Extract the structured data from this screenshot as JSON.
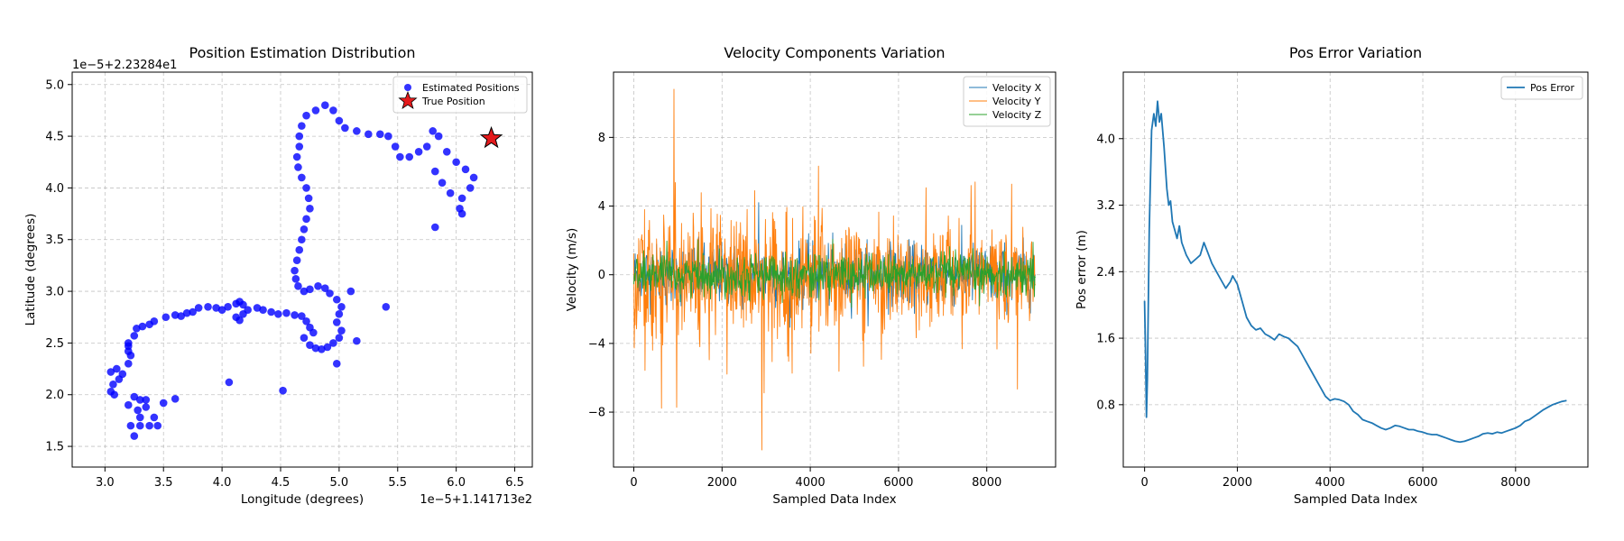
{
  "chart_data": [
    {
      "type": "scatter",
      "title": "Position Estimation Distribution",
      "xlabel": "Longitude (degrees)",
      "ylabel": "Latitude (degrees)",
      "x_offset_label": "1e−5+1.141713e2",
      "y_offset_label": "1e−5+2.23284e1",
      "xlim": [
        2.72,
        6.65
      ],
      "ylim": [
        1.3,
        5.12
      ],
      "xticks": [
        3.0,
        3.5,
        4.0,
        4.5,
        5.0,
        5.5,
        6.0,
        6.5
      ],
      "xtick_labels": [
        "3.0",
        "3.5",
        "4.0",
        "4.5",
        "5.0",
        "5.5",
        "6.0",
        "6.5"
      ],
      "yticks": [
        1.5,
        2.0,
        2.5,
        3.0,
        3.5,
        4.0,
        4.5,
        5.0
      ],
      "ytick_labels": [
        "1.5",
        "2.0",
        "2.5",
        "3.0",
        "3.5",
        "4.0",
        "4.5",
        "5.0"
      ],
      "grid": true,
      "legend_position": "top-right",
      "colors": {
        "estimated": "#0000ff",
        "true": "#e41a1c"
      },
      "series": [
        {
          "name": "Estimated Positions",
          "marker": "circle",
          "points": [
            [
              3.05,
              2.03
            ],
            [
              3.07,
              2.1
            ],
            [
              3.05,
              2.22
            ],
            [
              3.1,
              2.25
            ],
            [
              3.12,
              2.15
            ],
            [
              3.15,
              2.2
            ],
            [
              3.08,
              2.0
            ],
            [
              3.2,
              2.3
            ],
            [
              3.2,
              2.42
            ],
            [
              3.2,
              2.5
            ],
            [
              3.22,
              2.38
            ],
            [
              3.2,
              2.47
            ],
            [
              3.25,
              2.57
            ],
            [
              3.27,
              2.64
            ],
            [
              3.32,
              2.66
            ],
            [
              3.38,
              2.68
            ],
            [
              3.42,
              2.71
            ],
            [
              3.52,
              2.75
            ],
            [
              3.6,
              2.77
            ],
            [
              3.65,
              2.76
            ],
            [
              3.7,
              2.79
            ],
            [
              3.75,
              2.8
            ],
            [
              3.8,
              2.84
            ],
            [
              3.88,
              2.85
            ],
            [
              3.95,
              2.84
            ],
            [
              4.0,
              2.82
            ],
            [
              4.05,
              2.85
            ],
            [
              4.12,
              2.88
            ],
            [
              4.15,
              2.9
            ],
            [
              4.18,
              2.87
            ],
            [
              4.12,
              2.75
            ],
            [
              4.15,
              2.72
            ],
            [
              4.18,
              2.78
            ],
            [
              4.22,
              2.82
            ],
            [
              4.3,
              2.84
            ],
            [
              4.35,
              2.82
            ],
            [
              4.42,
              2.8
            ],
            [
              4.48,
              2.78
            ],
            [
              4.55,
              2.79
            ],
            [
              4.62,
              2.77
            ],
            [
              4.68,
              2.76
            ],
            [
              4.72,
              2.71
            ],
            [
              4.75,
              2.65
            ],
            [
              4.78,
              2.6
            ],
            [
              4.7,
              2.55
            ],
            [
              4.75,
              2.48
            ],
            [
              4.8,
              2.45
            ],
            [
              4.85,
              2.44
            ],
            [
              4.9,
              2.46
            ],
            [
              4.95,
              2.5
            ],
            [
              5.0,
              2.55
            ],
            [
              5.02,
              2.62
            ],
            [
              4.98,
              2.7
            ],
            [
              5.0,
              2.78
            ],
            [
              5.02,
              2.85
            ],
            [
              4.98,
              2.92
            ],
            [
              4.92,
              2.98
            ],
            [
              4.88,
              3.03
            ],
            [
              4.82,
              3.05
            ],
            [
              4.75,
              3.02
            ],
            [
              4.7,
              3.0
            ],
            [
              4.65,
              3.05
            ],
            [
              4.63,
              3.12
            ],
            [
              4.62,
              3.2
            ],
            [
              4.64,
              3.3
            ],
            [
              4.66,
              3.4
            ],
            [
              4.68,
              3.5
            ],
            [
              4.7,
              3.6
            ],
            [
              4.72,
              3.7
            ],
            [
              4.75,
              3.8
            ],
            [
              4.74,
              3.9
            ],
            [
              4.72,
              4.0
            ],
            [
              4.68,
              4.1
            ],
            [
              4.65,
              4.2
            ],
            [
              4.64,
              4.3
            ],
            [
              4.66,
              4.4
            ],
            [
              4.66,
              4.5
            ],
            [
              4.68,
              4.6
            ],
            [
              4.72,
              4.7
            ],
            [
              4.8,
              4.75
            ],
            [
              4.88,
              4.8
            ],
            [
              4.95,
              4.75
            ],
            [
              5.0,
              4.65
            ],
            [
              5.05,
              4.58
            ],
            [
              5.15,
              4.55
            ],
            [
              5.25,
              4.52
            ],
            [
              5.35,
              4.52
            ],
            [
              5.42,
              4.5
            ],
            [
              5.48,
              4.4
            ],
            [
              5.52,
              4.3
            ],
            [
              5.6,
              4.3
            ],
            [
              5.68,
              4.35
            ],
            [
              5.75,
              4.4
            ],
            [
              5.8,
              4.55
            ],
            [
              5.85,
              4.5
            ],
            [
              5.92,
              4.35
            ],
            [
              6.0,
              4.25
            ],
            [
              6.08,
              4.18
            ],
            [
              6.15,
              4.1
            ],
            [
              6.12,
              4.0
            ],
            [
              6.05,
              3.9
            ],
            [
              6.03,
              3.8
            ],
            [
              6.05,
              3.75
            ],
            [
              5.95,
              3.95
            ],
            [
              5.88,
              4.05
            ],
            [
              5.82,
              4.16
            ],
            [
              5.82,
              3.62
            ],
            [
              5.4,
              2.85
            ],
            [
              5.15,
              2.52
            ],
            [
              5.1,
              3.0
            ],
            [
              4.98,
              2.3
            ],
            [
              4.52,
              2.04
            ],
            [
              4.06,
              2.12
            ],
            [
              3.6,
              1.96
            ],
            [
              3.5,
              1.92
            ],
            [
              3.42,
              1.78
            ],
            [
              3.45,
              1.7
            ],
            [
              3.38,
              1.7
            ],
            [
              3.3,
              1.7
            ],
            [
              3.25,
              1.6
            ],
            [
              3.22,
              1.7
            ],
            [
              3.3,
              1.78
            ],
            [
              3.28,
              1.85
            ],
            [
              3.35,
              1.88
            ],
            [
              3.3,
              1.95
            ],
            [
              3.25,
              1.98
            ],
            [
              3.2,
              1.9
            ],
            [
              3.35,
              1.95
            ]
          ]
        },
        {
          "name": "True Position",
          "marker": "star",
          "points": [
            [
              6.3,
              4.48
            ]
          ]
        }
      ]
    },
    {
      "type": "line",
      "title": "Velocity Components Variation",
      "xlabel": "Sampled Data Index",
      "ylabel": "Velocity (m/s)",
      "xlim": [
        -460,
        9560
      ],
      "ylim": [
        -11.2,
        11.8
      ],
      "xticks": [
        0,
        2000,
        4000,
        6000,
        8000
      ],
      "xtick_labels": [
        "0",
        "2000",
        "4000",
        "6000",
        "8000"
      ],
      "yticks": [
        -8,
        -4,
        0,
        4,
        8
      ],
      "ytick_labels": [
        "−8",
        "−4",
        "0",
        "4",
        "8"
      ],
      "grid": true,
      "legend_position": "top-right",
      "x_range": [
        0,
        9100
      ],
      "series": [
        {
          "name": "Velocity X",
          "color": "#1f77b4",
          "amplitude": 1.6,
          "peak": 4.2
        },
        {
          "name": "Velocity Y",
          "color": "#ff7f0e",
          "amplitude": 2.8,
          "peak": 10.8,
          "trough": -10.2
        },
        {
          "name": "Velocity Z",
          "color": "#2ca02c",
          "amplitude": 1.1,
          "peak": 3.5
        }
      ]
    },
    {
      "type": "line",
      "title": "Pos Error Variation",
      "xlabel": "Sampled Data Index",
      "ylabel": "Pos error (m)",
      "xlim": [
        -460,
        9560
      ],
      "ylim": [
        0.05,
        4.8
      ],
      "xticks": [
        0,
        2000,
        4000,
        6000,
        8000
      ],
      "xtick_labels": [
        "0",
        "2000",
        "4000",
        "6000",
        "8000"
      ],
      "yticks": [
        0.8,
        1.6,
        2.4,
        3.2,
        4.0
      ],
      "ytick_labels": [
        "0.8",
        "1.6",
        "2.4",
        "3.2",
        "4.0"
      ],
      "grid": true,
      "legend_position": "top-right",
      "colors": {
        "line": "#1f77b4"
      },
      "series": [
        {
          "name": "Pos Error",
          "points": [
            [
              0,
              2.05
            ],
            [
              20,
              1.4
            ],
            [
              40,
              0.65
            ],
            [
              60,
              1.1
            ],
            [
              100,
              2.9
            ],
            [
              150,
              4.1
            ],
            [
              200,
              4.3
            ],
            [
              240,
              4.15
            ],
            [
              280,
              4.45
            ],
            [
              320,
              4.2
            ],
            [
              360,
              4.3
            ],
            [
              420,
              3.9
            ],
            [
              480,
              3.4
            ],
            [
              520,
              3.2
            ],
            [
              560,
              3.25
            ],
            [
              600,
              3.0
            ],
            [
              650,
              2.9
            ],
            [
              700,
              2.8
            ],
            [
              750,
              2.95
            ],
            [
              800,
              2.75
            ],
            [
              900,
              2.6
            ],
            [
              1000,
              2.5
            ],
            [
              1100,
              2.55
            ],
            [
              1200,
              2.6
            ],
            [
              1280,
              2.75
            ],
            [
              1350,
              2.65
            ],
            [
              1450,
              2.5
            ],
            [
              1550,
              2.4
            ],
            [
              1650,
              2.3
            ],
            [
              1750,
              2.2
            ],
            [
              1850,
              2.28
            ],
            [
              1900,
              2.35
            ],
            [
              2000,
              2.25
            ],
            [
              2100,
              2.05
            ],
            [
              2200,
              1.85
            ],
            [
              2300,
              1.75
            ],
            [
              2400,
              1.7
            ],
            [
              2500,
              1.72
            ],
            [
              2600,
              1.65
            ],
            [
              2700,
              1.62
            ],
            [
              2800,
              1.58
            ],
            [
              2900,
              1.65
            ],
            [
              3000,
              1.62
            ],
            [
              3100,
              1.6
            ],
            [
              3200,
              1.55
            ],
            [
              3300,
              1.5
            ],
            [
              3400,
              1.4
            ],
            [
              3500,
              1.3
            ],
            [
              3600,
              1.2
            ],
            [
              3700,
              1.1
            ],
            [
              3800,
              1.0
            ],
            [
              3900,
              0.9
            ],
            [
              4000,
              0.85
            ],
            [
              4100,
              0.87
            ],
            [
              4200,
              0.86
            ],
            [
              4300,
              0.84
            ],
            [
              4400,
              0.8
            ],
            [
              4500,
              0.72
            ],
            [
              4600,
              0.68
            ],
            [
              4700,
              0.62
            ],
            [
              4800,
              0.6
            ],
            [
              4900,
              0.58
            ],
            [
              5000,
              0.55
            ],
            [
              5100,
              0.52
            ],
            [
              5200,
              0.5
            ],
            [
              5300,
              0.52
            ],
            [
              5400,
              0.55
            ],
            [
              5500,
              0.54
            ],
            [
              5600,
              0.52
            ],
            [
              5700,
              0.5
            ],
            [
              5800,
              0.5
            ],
            [
              5900,
              0.48
            ],
            [
              6000,
              0.47
            ],
            [
              6100,
              0.45
            ],
            [
              6200,
              0.44
            ],
            [
              6300,
              0.44
            ],
            [
              6400,
              0.42
            ],
            [
              6500,
              0.4
            ],
            [
              6600,
              0.38
            ],
            [
              6700,
              0.36
            ],
            [
              6800,
              0.35
            ],
            [
              6900,
              0.36
            ],
            [
              7000,
              0.38
            ],
            [
              7100,
              0.4
            ],
            [
              7200,
              0.42
            ],
            [
              7300,
              0.45
            ],
            [
              7400,
              0.46
            ],
            [
              7500,
              0.45
            ],
            [
              7600,
              0.47
            ],
            [
              7700,
              0.46
            ],
            [
              7800,
              0.48
            ],
            [
              7900,
              0.5
            ],
            [
              8000,
              0.52
            ],
            [
              8100,
              0.55
            ],
            [
              8200,
              0.6
            ],
            [
              8300,
              0.62
            ],
            [
              8400,
              0.66
            ],
            [
              8500,
              0.7
            ],
            [
              8600,
              0.74
            ],
            [
              8700,
              0.77
            ],
            [
              8800,
              0.8
            ],
            [
              8900,
              0.82
            ],
            [
              9000,
              0.84
            ],
            [
              9100,
              0.85
            ]
          ]
        }
      ]
    }
  ]
}
